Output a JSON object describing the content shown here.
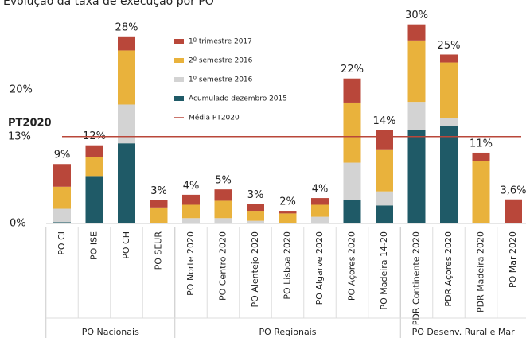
{
  "chart_data": {
    "type": "stacked_bar",
    "title": "Evolução da taxa de execução por PO",
    "categories": [
      "PO CI",
      "PO ISE",
      "PO CH",
      "PO SEUR",
      "PO Norte 2020",
      "PO Centro 2020",
      "PO Alentejo 2020",
      "PO Lisboa 2020",
      "PO Algarve 2020",
      "PO Açores 2020",
      "PO Madeira 14-20",
      "PDR Continente 2020",
      "PDR Açores 2020",
      "PDR Madeira 2020",
      "PO Mar 2020"
    ],
    "series": [
      {
        "name": "Acumulado dezembro 2015",
        "color": "#1f5a67",
        "values": [
          0.2,
          7.1,
          12.0,
          0,
          0,
          0,
          0,
          0,
          0,
          3.5,
          2.7,
          14.0,
          14.6,
          0,
          0
        ]
      },
      {
        "name": "1º semestre 2016",
        "color": "#d3d3d3",
        "values": [
          2.0,
          0,
          5.8,
          0,
          0.8,
          0.8,
          0.4,
          0.1,
          1.0,
          5.6,
          2.1,
          4.2,
          1.2,
          0,
          0
        ]
      },
      {
        "name": "2º semestre 2016",
        "color": "#e9b23c",
        "values": [
          3.3,
          2.9,
          8.1,
          2.4,
          2.0,
          2.6,
          1.5,
          1.4,
          1.8,
          9.0,
          6.3,
          9.2,
          8.3,
          9.4,
          0
        ]
      },
      {
        "name": "1º trimestre 2017",
        "color": "#b9473a",
        "values": [
          3.4,
          1.7,
          2.1,
          1.1,
          1.5,
          1.7,
          1.0,
          0.4,
          1.0,
          3.6,
          2.9,
          2.4,
          1.2,
          1.2,
          3.6
        ]
      }
    ],
    "total_labels": [
      "9%",
      "12%",
      "28%",
      "3%",
      "4%",
      "5%",
      "3%",
      "2%",
      "4%",
      "22%",
      "14%",
      "30%",
      "25%",
      "11%",
      "3,6%"
    ],
    "reference_line": {
      "name": "Média PT2020",
      "label": "PT2020",
      "value": 13,
      "value_label": "13%",
      "color": "#b9473a"
    },
    "groups": [
      {
        "name": "PO Nacionais",
        "span": [
          0,
          3
        ]
      },
      {
        "name": "PO Regionais",
        "span": [
          4,
          10
        ]
      },
      {
        "name": "PO Desenv. Rural e Mar",
        "span": [
          11,
          14
        ]
      }
    ],
    "ylim": [
      0,
      30
    ],
    "yticks": [
      {
        "value": 0,
        "label": "0%"
      },
      {
        "value": 20,
        "label": "20%"
      }
    ]
  }
}
